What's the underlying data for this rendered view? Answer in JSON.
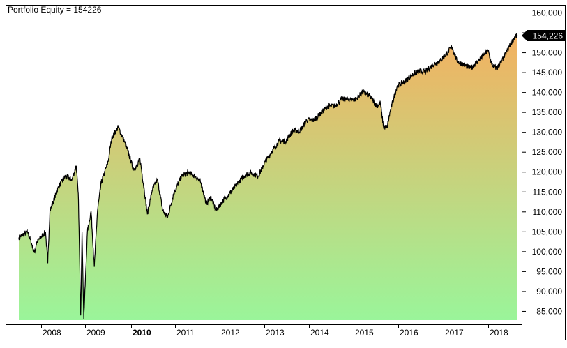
{
  "header": {
    "title": "Portfolio Equity = 154226"
  },
  "last_value_label": "154,226",
  "colors": {
    "fill_top": "#f4b060",
    "fill_bottom": "#9af59a",
    "line": "#000000",
    "last_value_bg": "#000000",
    "last_value_text": "#ffffff",
    "frame": "#000000"
  },
  "chart_data": {
    "type": "area",
    "title": "Portfolio Equity = 154226",
    "xlabel": "",
    "ylabel": "",
    "ylim": [
      83000,
      160500
    ],
    "grid": false,
    "legend": "none",
    "y_axis_position": "right",
    "y_ticks": [
      85000,
      90000,
      95000,
      100000,
      105000,
      110000,
      115000,
      120000,
      125000,
      130000,
      135000,
      140000,
      145000,
      150000,
      155000,
      160000
    ],
    "y_tick_labels": [
      "85,000",
      "90,000",
      "95,000",
      "100,000",
      "105,000",
      "110,000",
      "115,000",
      "120,000",
      "125,000",
      "130,000",
      "135,000",
      "140,000",
      "145,000",
      "150,000",
      "155,000",
      "160,000"
    ],
    "x_tick_labels": [
      "2008",
      "2009",
      "2010",
      "2011",
      "2012",
      "2013",
      "2014",
      "2015",
      "2016",
      "2017",
      "2018"
    ],
    "x_tick_bold": [
      "2010"
    ],
    "last_value": 154226,
    "x": [
      2007.5,
      2007.7,
      2007.85,
      2007.9,
      2008.1,
      2008.15,
      2008.2,
      2008.4,
      2008.55,
      2008.7,
      2008.8,
      2008.85,
      2008.9,
      2008.93,
      2008.97,
      2009.05,
      2009.13,
      2009.2,
      2009.27,
      2009.35,
      2009.5,
      2009.58,
      2009.72,
      2009.85,
      2009.93,
      2010.05,
      2010.15,
      2010.2,
      2010.3,
      2010.37,
      2010.48,
      2010.6,
      2010.72,
      2010.83,
      2010.97,
      2011.15,
      2011.3,
      2011.45,
      2011.58,
      2011.7,
      2011.8,
      2011.92,
      2012.08,
      2012.23,
      2012.39,
      2012.55,
      2012.7,
      2012.86,
      2013.02,
      2013.17,
      2013.33,
      2013.48,
      2013.64,
      2013.8,
      2013.95,
      2014.11,
      2014.27,
      2014.42,
      2014.58,
      2014.73,
      2014.89,
      2015.05,
      2015.2,
      2015.36,
      2015.52,
      2015.6,
      2015.67,
      2015.75,
      2015.83,
      2015.98,
      2016.14,
      2016.3,
      2016.45,
      2016.61,
      2016.77,
      2016.92,
      2017.06,
      2017.19,
      2017.3,
      2017.45,
      2017.61,
      2017.77,
      2017.92,
      2018.0,
      2018.08,
      2018.19,
      2018.31,
      2018.47,
      2018.6,
      2018.65
    ],
    "values": [
      103500,
      104900,
      99600,
      102300,
      104900,
      97000,
      110200,
      116300,
      118900,
      118000,
      121500,
      112800,
      83900,
      104900,
      83000,
      104900,
      110200,
      96100,
      110200,
      117200,
      122500,
      128600,
      131200,
      127700,
      125100,
      120700,
      121500,
      123300,
      115400,
      109300,
      115400,
      118000,
      110200,
      108500,
      114600,
      118900,
      119800,
      118900,
      117200,
      111900,
      113700,
      110200,
      112800,
      114600,
      116900,
      119000,
      119800,
      118900,
      122500,
      125100,
      127700,
      127700,
      130300,
      130300,
      133000,
      133000,
      134700,
      136500,
      136500,
      138200,
      138200,
      138200,
      140000,
      139100,
      136500,
      137300,
      131200,
      131200,
      135600,
      141700,
      142600,
      144300,
      145200,
      145200,
      146900,
      147800,
      149600,
      151400,
      147800,
      146900,
      146000,
      147800,
      149600,
      150400,
      146900,
      146000,
      147800,
      151400,
      154000,
      154226
    ]
  }
}
